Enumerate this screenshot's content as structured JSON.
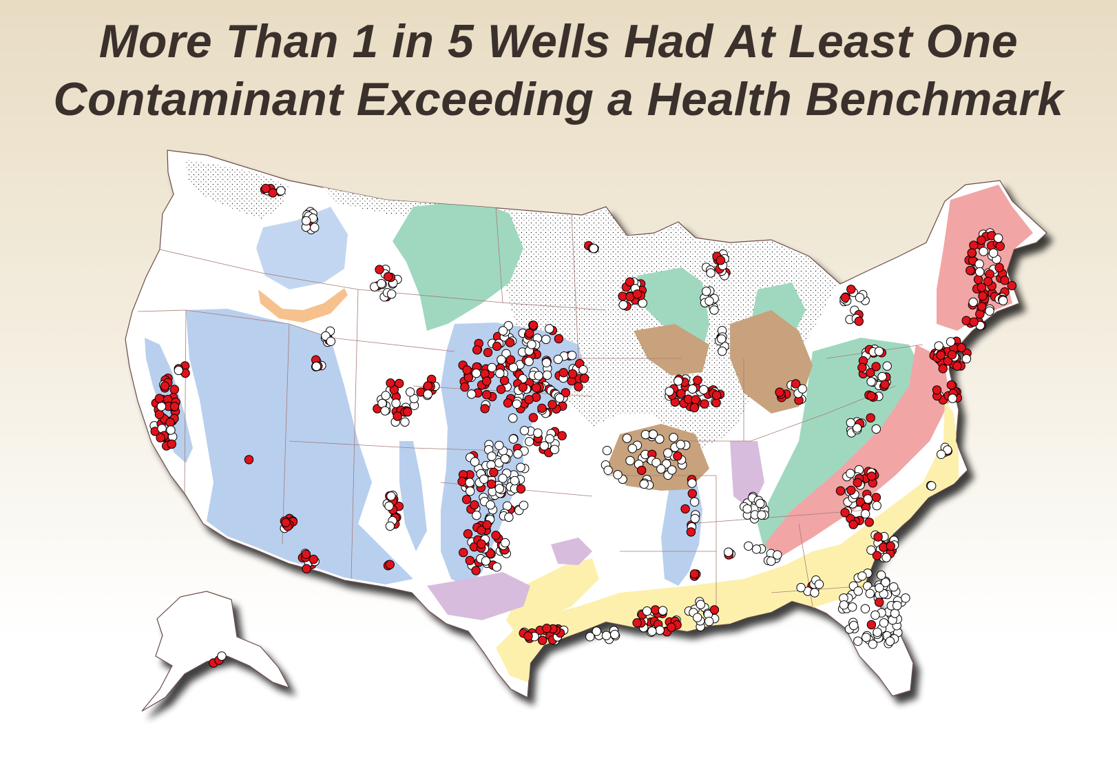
{
  "title": {
    "line1": "More Than 1 in 5 Wells Had At Least One",
    "line2": "Contaminant Exceeding a Health Benchmark"
  },
  "colors": {
    "exceeds_benchmark": "#e0121b",
    "below_benchmark": "#ffffff",
    "aquifer_blue": "#b9cfee",
    "aquifer_green": "#9fd8bf",
    "aquifer_brown": "#c7a27d",
    "aquifer_pink": "#f1a5a5",
    "aquifer_yellow": "#fdf0ad",
    "aquifer_purple": "#d8bcdd",
    "aquifer_orange": "#f6c18c",
    "glacial_stipple": "#ffffff"
  }
}
